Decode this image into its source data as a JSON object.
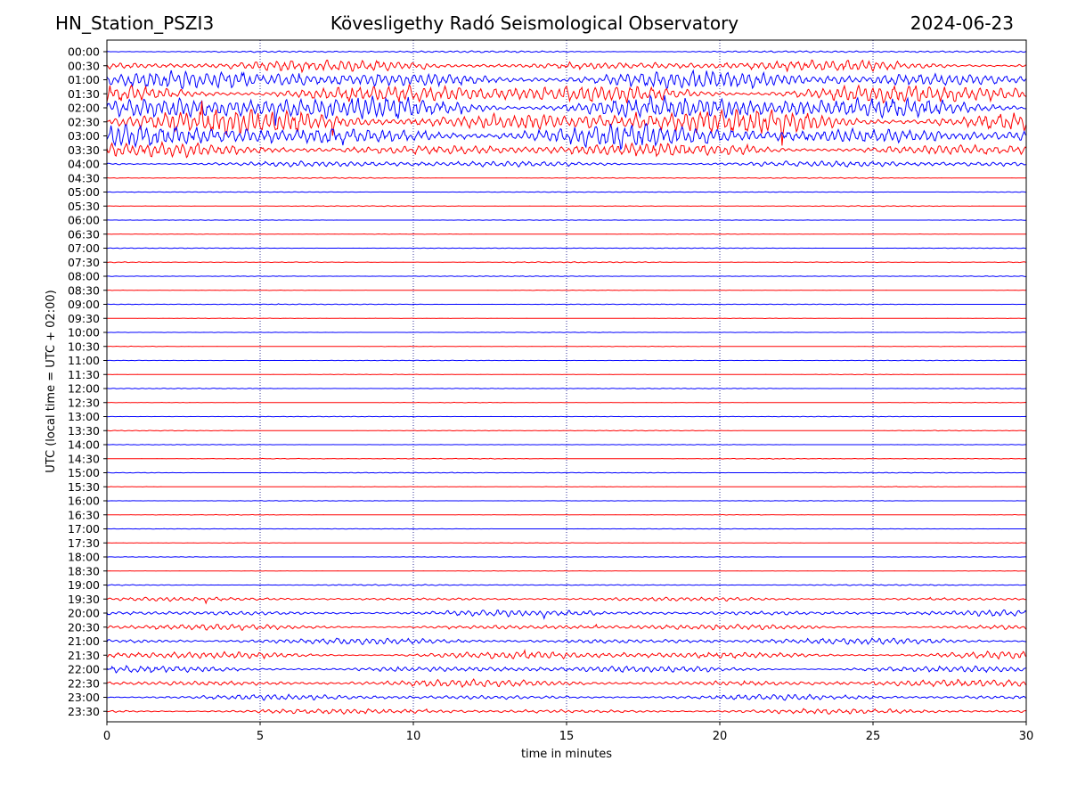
{
  "header": {
    "station": "HN_Station_PSZI3",
    "observatory": "Kövesligethy Radó Seismological Observatory",
    "date": "2024-06-23"
  },
  "colors": {
    "even_rows": "#0000ff",
    "odd_rows": "#ff0000",
    "grid": "#000080",
    "axes": "#000000"
  },
  "chart_data": {
    "type": "line",
    "chart_kind": "helicorder",
    "xlabel": "time in minutes",
    "ylabel": "UTC (local time = UTC + 02:00)",
    "xlim": [
      0,
      30
    ],
    "xticks": [
      0,
      5,
      10,
      15,
      20,
      25,
      30
    ],
    "vertical_grid_at": [
      5,
      10,
      15,
      20,
      25
    ],
    "row_labels": [
      "00:00",
      "00:30",
      "01:00",
      "01:30",
      "02:00",
      "02:30",
      "03:00",
      "03:30",
      "04:00",
      "04:30",
      "05:00",
      "05:30",
      "06:00",
      "06:30",
      "07:00",
      "07:30",
      "08:00",
      "08:30",
      "09:00",
      "09:30",
      "10:00",
      "10:30",
      "11:00",
      "11:30",
      "12:00",
      "12:30",
      "13:00",
      "13:30",
      "14:00",
      "14:30",
      "15:00",
      "15:30",
      "16:00",
      "16:30",
      "17:00",
      "17:30",
      "18:00",
      "18:30",
      "19:00",
      "19:30",
      "20:00",
      "20:30",
      "21:00",
      "21:30",
      "22:00",
      "22:30",
      "23:00",
      "23:30"
    ],
    "relative_amplitude": [
      0.08,
      0.45,
      0.75,
      0.8,
      1.0,
      1.0,
      0.95,
      0.55,
      0.25,
      0.04,
      0.03,
      0.03,
      0.02,
      0.02,
      0.03,
      0.04,
      0.03,
      0.02,
      0.03,
      0.02,
      0.02,
      0.02,
      0.02,
      0.02,
      0.03,
      0.02,
      0.02,
      0.03,
      0.02,
      0.03,
      0.03,
      0.02,
      0.02,
      0.02,
      0.02,
      0.02,
      0.02,
      0.02,
      0.05,
      0.15,
      0.25,
      0.22,
      0.25,
      0.3,
      0.28,
      0.28,
      0.22,
      0.2
    ],
    "row_color_pattern": [
      "blue",
      "red"
    ]
  }
}
